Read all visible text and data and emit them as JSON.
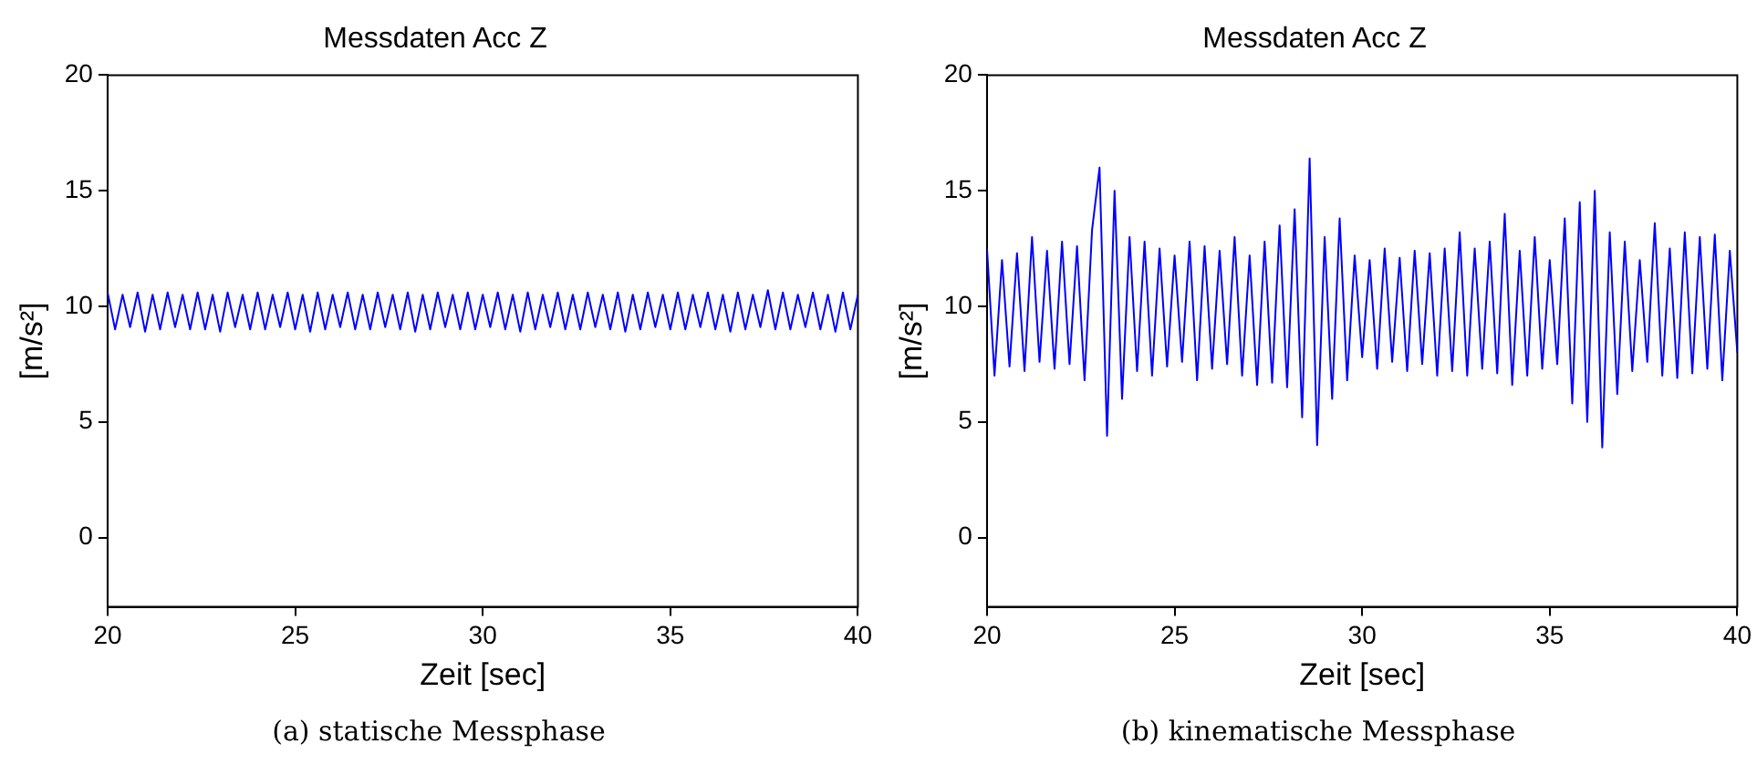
{
  "chart_data": [
    {
      "type": "line",
      "title": "Messdaten Acc Z",
      "xlabel": "Zeit [sec]",
      "ylabel": "[m/s²]",
      "annotations": [
        "(a) statische Messphase"
      ],
      "x": [
        20,
        20.2,
        20.4,
        20.6,
        20.8,
        21,
        21.2,
        21.4,
        21.6,
        21.8,
        22,
        22.2,
        22.4,
        22.6,
        22.8,
        23,
        23.2,
        23.4,
        23.6,
        23.8,
        24,
        24.2,
        24.4,
        24.6,
        24.8,
        25,
        25.2,
        25.4,
        25.6,
        25.8,
        26,
        26.2,
        26.4,
        26.6,
        26.8,
        27,
        27.2,
        27.4,
        27.6,
        27.8,
        28,
        28.2,
        28.4,
        28.6,
        28.8,
        29,
        29.2,
        29.4,
        29.6,
        29.8,
        30,
        30.2,
        30.4,
        30.6,
        30.8,
        31,
        31.2,
        31.4,
        31.6,
        31.8,
        32,
        32.2,
        32.4,
        32.6,
        32.8,
        33,
        33.2,
        33.4,
        33.6,
        33.8,
        34,
        34.2,
        34.4,
        34.6,
        34.8,
        35,
        35.2,
        35.4,
        35.6,
        35.8,
        36,
        36.2,
        36.4,
        36.6,
        36.8,
        37,
        37.2,
        37.4,
        37.6,
        37.8,
        38,
        38.2,
        38.4,
        38.6,
        38.8,
        39,
        39.2,
        39.4,
        39.6,
        39.8,
        40
      ],
      "series": [
        {
          "color": "#0000ff",
          "values": [
            10.6,
            9,
            10.5,
            9.1,
            10.6,
            8.9,
            10.5,
            9,
            10.6,
            9.1,
            10.5,
            9,
            10.6,
            9,
            10.5,
            8.9,
            10.6,
            9.1,
            10.5,
            9,
            10.6,
            9,
            10.5,
            9.1,
            10.6,
            9,
            10.5,
            8.9,
            10.6,
            9,
            10.5,
            9.1,
            10.6,
            9,
            10.5,
            9,
            10.6,
            9.1,
            10.5,
            9,
            10.6,
            8.9,
            10.5,
            9,
            10.6,
            9.1,
            10.5,
            9,
            10.6,
            9,
            10.5,
            9.1,
            10.6,
            9,
            10.5,
            8.9,
            10.6,
            9,
            10.5,
            9.1,
            10.6,
            9,
            10.5,
            9,
            10.6,
            9.1,
            10.5,
            9,
            10.6,
            8.9,
            10.5,
            9,
            10.6,
            9.1,
            10.5,
            9,
            10.6,
            9,
            10.5,
            9.1,
            10.6,
            9,
            10.5,
            8.9,
            10.6,
            9,
            10.5,
            9.1,
            10.7,
            9,
            10.6,
            9,
            10.5,
            9.1,
            10.6,
            9,
            10.5,
            8.9,
            10.6,
            9,
            10.5
          ]
        }
      ],
      "xlim": [
        20,
        40
      ],
      "xticks": [
        20,
        25,
        30,
        35,
        40
      ],
      "ylim": [
        -3,
        20
      ],
      "yticks": [
        0,
        5,
        10,
        15,
        20
      ],
      "grid": false,
      "legend": false
    },
    {
      "type": "line",
      "title": "Messdaten Acc Z",
      "xlabel": "Zeit [sec]",
      "ylabel": "[m/s²]",
      "annotations": [
        "(b) kinematische Messphase"
      ],
      "x": [
        20,
        20.2,
        20.4,
        20.6,
        20.8,
        21,
        21.2,
        21.4,
        21.6,
        21.8,
        22,
        22.2,
        22.4,
        22.6,
        22.8,
        23,
        23.2,
        23.4,
        23.6,
        23.8,
        24,
        24.2,
        24.4,
        24.6,
        24.8,
        25,
        25.2,
        25.4,
        25.6,
        25.8,
        26,
        26.2,
        26.4,
        26.6,
        26.8,
        27,
        27.2,
        27.4,
        27.6,
        27.8,
        28,
        28.2,
        28.4,
        28.6,
        28.8,
        29,
        29.2,
        29.4,
        29.6,
        29.8,
        30,
        30.2,
        30.4,
        30.6,
        30.8,
        31,
        31.2,
        31.4,
        31.6,
        31.8,
        32,
        32.2,
        32.4,
        32.6,
        32.8,
        33,
        33.2,
        33.4,
        33.6,
        33.8,
        34,
        34.2,
        34.4,
        34.6,
        34.8,
        35,
        35.2,
        35.4,
        35.6,
        35.8,
        36,
        36.2,
        36.4,
        36.6,
        36.8,
        37,
        37.2,
        37.4,
        37.6,
        37.8,
        38,
        38.2,
        38.4,
        38.6,
        38.8,
        39,
        39.2,
        39.4,
        39.6,
        39.8,
        40
      ],
      "series": [
        {
          "color": "#0000ff",
          "values": [
            12.5,
            7,
            12,
            7.4,
            12.3,
            7.2,
            13,
            7.6,
            12.4,
            7.3,
            12.8,
            7.5,
            12.6,
            6.8,
            13.3,
            16,
            4.4,
            15,
            6,
            13,
            7.2,
            12.8,
            7,
            12.5,
            7.4,
            12.2,
            7.6,
            12.8,
            6.8,
            12.6,
            7.3,
            12.4,
            7.5,
            13,
            7,
            12.2,
            6.6,
            12.8,
            6.7,
            13.5,
            6.5,
            14.2,
            5.2,
            16.4,
            4,
            13,
            6,
            13.8,
            6.8,
            12.2,
            7.8,
            12,
            7.3,
            12.5,
            7.6,
            12.1,
            7.2,
            12.4,
            7.5,
            12.3,
            7,
            12.5,
            7.2,
            13.2,
            7,
            12.5,
            7.3,
            12.8,
            7.1,
            14,
            6.6,
            12.4,
            7,
            13,
            7.3,
            12,
            7.5,
            13.8,
            5.8,
            14.5,
            5,
            15,
            3.9,
            13.2,
            6.2,
            12.8,
            7.2,
            12,
            7.6,
            13.6,
            7,
            12.5,
            6.9,
            13.2,
            7.1,
            13,
            7.3,
            13.1,
            6.8,
            12.4,
            8
          ]
        }
      ],
      "xlim": [
        20,
        40
      ],
      "xticks": [
        20,
        25,
        30,
        35,
        40
      ],
      "ylim": [
        -3,
        20
      ],
      "yticks": [
        0,
        5,
        10,
        15,
        20
      ],
      "grid": false,
      "legend": false
    }
  ]
}
